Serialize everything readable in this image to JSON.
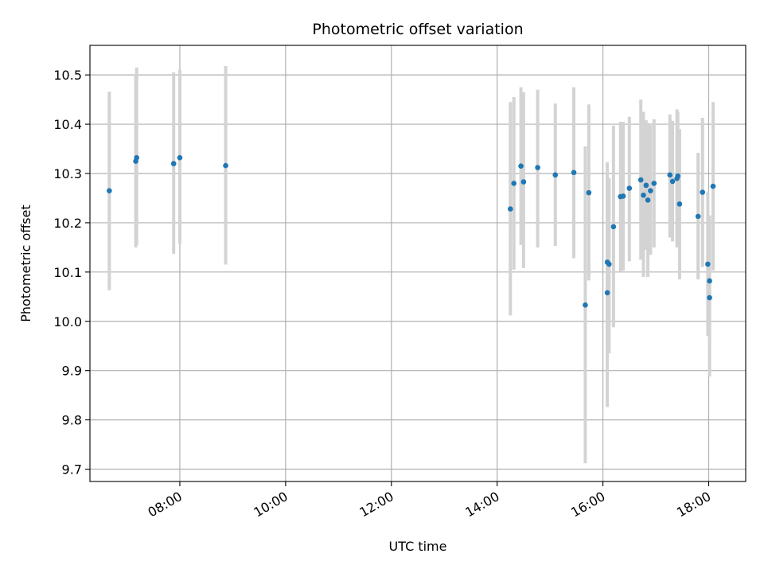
{
  "chart_data": {
    "type": "scatter",
    "title": "Photometric offset variation",
    "xlabel": "UTC time",
    "ylabel": "Photometric offset",
    "xlim": [
      "06:18",
      "18:42"
    ],
    "ylim": [
      9.675,
      10.56
    ],
    "x_ticks": [
      "08:00",
      "10:00",
      "12:00",
      "14:00",
      "16:00",
      "18:00"
    ],
    "y_ticks": [
      "9.7",
      "9.8",
      "9.9",
      "10.0",
      "10.1",
      "10.2",
      "10.3",
      "10.4",
      "10.5"
    ],
    "grid": true,
    "marker_color": "#1f77b4",
    "errorbar_color": "#d3d3d3",
    "points": [
      {
        "x": "06:40",
        "y": 10.265,
        "y_low": 10.063,
        "y_high": 10.466
      },
      {
        "x": "07:10",
        "y": 10.325,
        "y_low": 10.15,
        "y_high": 10.5
      },
      {
        "x": "07:11",
        "y": 10.332,
        "y_low": 10.155,
        "y_high": 10.515
      },
      {
        "x": "07:53",
        "y": 10.32,
        "y_low": 10.137,
        "y_high": 10.505
      },
      {
        "x": "08:00",
        "y": 10.332,
        "y_low": 10.157,
        "y_high": 10.51
      },
      {
        "x": "08:52",
        "y": 10.316,
        "y_low": 10.115,
        "y_high": 10.518
      },
      {
        "x": "14:15",
        "y": 10.228,
        "y_low": 10.012,
        "y_high": 10.445
      },
      {
        "x": "14:19",
        "y": 10.28,
        "y_low": 10.105,
        "y_high": 10.455
      },
      {
        "x": "14:27",
        "y": 10.315,
        "y_low": 10.155,
        "y_high": 10.475
      },
      {
        "x": "14:30",
        "y": 10.283,
        "y_low": 10.108,
        "y_high": 10.465
      },
      {
        "x": "14:46",
        "y": 10.312,
        "y_low": 10.15,
        "y_high": 10.47
      },
      {
        "x": "15:06",
        "y": 10.297,
        "y_low": 10.153,
        "y_high": 10.442
      },
      {
        "x": "15:27",
        "y": 10.302,
        "y_low": 10.128,
        "y_high": 10.475
      },
      {
        "x": "15:40",
        "y": 10.033,
        "y_low": 9.712,
        "y_high": 10.355
      },
      {
        "x": "15:44",
        "y": 10.261,
        "y_low": 10.083,
        "y_high": 10.44
      },
      {
        "x": "16:05",
        "y": 10.058,
        "y_low": 9.826,
        "y_high": 10.323
      },
      {
        "x": "16:05",
        "y": 10.12,
        "y_low": 9.95,
        "y_high": 10.3
      },
      {
        "x": "16:07",
        "y": 10.116,
        "y_low": 9.935,
        "y_high": 10.29
      },
      {
        "x": "16:12",
        "y": 10.192,
        "y_low": 9.988,
        "y_high": 10.397
      },
      {
        "x": "16:20",
        "y": 10.253,
        "y_low": 10.1,
        "y_high": 10.405
      },
      {
        "x": "16:23",
        "y": 10.254,
        "y_low": 10.103,
        "y_high": 10.405
      },
      {
        "x": "16:30",
        "y": 10.27,
        "y_low": 10.122,
        "y_high": 10.415
      },
      {
        "x": "16:43",
        "y": 10.287,
        "y_low": 10.125,
        "y_high": 10.45
      },
      {
        "x": "16:46",
        "y": 10.256,
        "y_low": 10.09,
        "y_high": 10.425
      },
      {
        "x": "16:49",
        "y": 10.276,
        "y_low": 10.145,
        "y_high": 10.408
      },
      {
        "x": "16:51",
        "y": 10.246,
        "y_low": 10.09,
        "y_high": 10.403
      },
      {
        "x": "16:54",
        "y": 10.265,
        "y_low": 10.135,
        "y_high": 10.398
      },
      {
        "x": "16:58",
        "y": 10.28,
        "y_low": 10.15,
        "y_high": 10.41
      },
      {
        "x": "17:16",
        "y": 10.297,
        "y_low": 10.17,
        "y_high": 10.42
      },
      {
        "x": "17:19",
        "y": 10.284,
        "y_low": 10.162,
        "y_high": 10.407
      },
      {
        "x": "17:24",
        "y": 10.29,
        "y_low": 10.15,
        "y_high": 10.43
      },
      {
        "x": "17:25",
        "y": 10.295,
        "y_low": 10.16,
        "y_high": 10.425
      },
      {
        "x": "17:27",
        "y": 10.238,
        "y_low": 10.085,
        "y_high": 10.39
      },
      {
        "x": "17:48",
        "y": 10.213,
        "y_low": 10.085,
        "y_high": 10.342
      },
      {
        "x": "17:53",
        "y": 10.262,
        "y_low": 10.11,
        "y_high": 10.413
      },
      {
        "x": "17:59",
        "y": 10.116,
        "y_low": 9.97,
        "y_high": 10.262
      },
      {
        "x": "18:01",
        "y": 10.048,
        "y_low": 9.888,
        "y_high": 10.208
      },
      {
        "x": "18:01",
        "y": 10.082,
        "y_low": 9.95,
        "y_high": 10.215
      },
      {
        "x": "18:05",
        "y": 10.274,
        "y_low": 10.103,
        "y_high": 10.445
      }
    ]
  }
}
